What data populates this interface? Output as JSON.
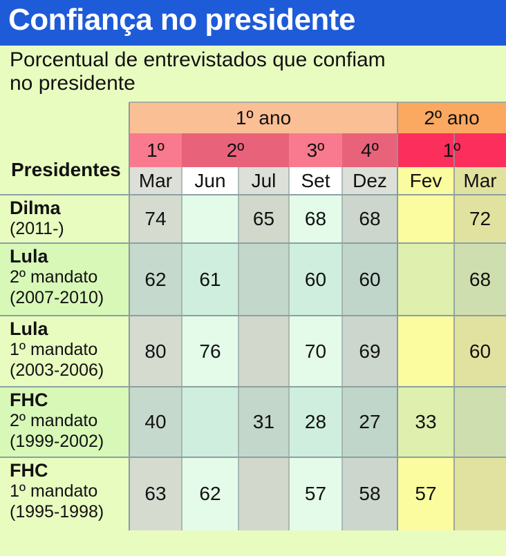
{
  "title": "Confiança no presidente",
  "subtitle": "Porcentual de entrevistados que confiam no presidente",
  "row_header": "Presidentes",
  "header": {
    "year1": "1º ano",
    "year2": "2º ano",
    "quarters": [
      "1º",
      "2º",
      "3º",
      "4º",
      "1º"
    ],
    "months": [
      "Mar",
      "Jun",
      "Jul",
      "Set",
      "Dez",
      "Fev",
      "Mar"
    ]
  },
  "rows": [
    {
      "name": "Dilma",
      "lines": [
        "(2011-)"
      ],
      "values": [
        "74",
        "",
        "65",
        "68",
        "68",
        "",
        "72"
      ]
    },
    {
      "name": "Lula",
      "lines": [
        "2º mandato",
        "(2007-2010)"
      ],
      "values": [
        "62",
        "61",
        "",
        "60",
        "60",
        "",
        "68"
      ]
    },
    {
      "name": "Lula",
      "lines": [
        "1º mandato",
        "(2003-2006)"
      ],
      "values": [
        "80",
        "76",
        "",
        "70",
        "69",
        "",
        "60"
      ]
    },
    {
      "name": "FHC",
      "lines": [
        "2º mandato",
        "(1999-2002)"
      ],
      "values": [
        "40",
        "",
        "31",
        "28",
        "27",
        "33",
        ""
      ]
    },
    {
      "name": "FHC",
      "lines": [
        "1º mandato",
        "(1995-1998)"
      ],
      "values": [
        "63",
        "62",
        "",
        "57",
        "58",
        "57",
        ""
      ]
    }
  ],
  "chart_data": {
    "type": "table",
    "title": "Confiança no presidente",
    "subtitle": "Porcentual de entrevistados que confiam no presidente",
    "columns": [
      "Mar",
      "Jun",
      "Jul",
      "Set",
      "Dez",
      "Fev",
      "Mar"
    ],
    "rows": [
      "Dilma (2011-)",
      "Lula 2º mandato (2007-2010)",
      "Lula 1º mandato (2003-2006)",
      "FHC 2º mandato (1999-2002)",
      "FHC 1º mandato (1995-1998)"
    ],
    "values": [
      [
        74,
        null,
        65,
        68,
        68,
        null,
        72
      ],
      [
        62,
        61,
        null,
        60,
        60,
        null,
        68
      ],
      [
        80,
        76,
        null,
        70,
        69,
        null,
        60
      ],
      [
        40,
        null,
        31,
        28,
        27,
        33,
        null
      ],
      [
        63,
        62,
        null,
        57,
        58,
        57,
        null
      ]
    ]
  },
  "colors": {
    "title_bar": "#1e5bd8",
    "background": "#e8fcc0",
    "year1": "#fbbf96",
    "year2": "#fba860",
    "q1": "#f97a8e",
    "q2": "#e8637a",
    "q3": "#f97a8e",
    "q4": "#e8637a",
    "q1_year2": "#fb2e5c"
  }
}
